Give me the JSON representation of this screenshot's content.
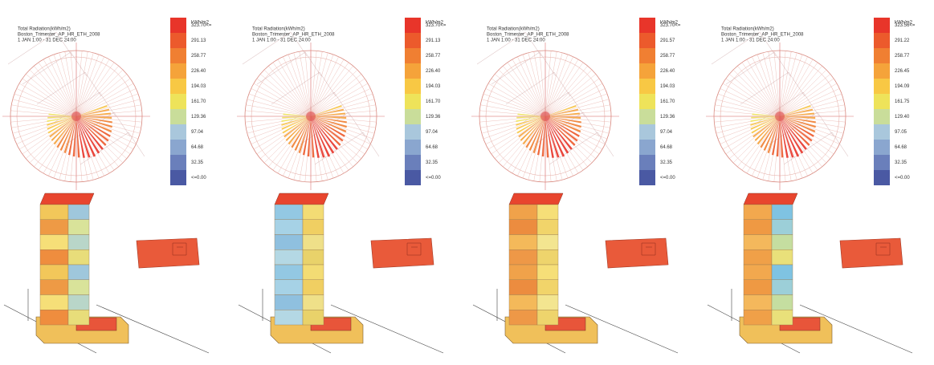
{
  "panels": [
    {
      "title_lines": [
        "Total Radiation(kWh/m2)",
        "Boston_Trimester_AP_HR_ETH_2008",
        "1 JAN 1:00 - 31 DEC 24:00"
      ],
      "legend_unit": "kWh/m2",
      "legend_labels": [
        "323.70<=",
        "291.13",
        "258.77",
        "226.40",
        "194.03",
        "161.70",
        "129.36",
        "97.04",
        "64.68",
        "32.35",
        "<=0.00"
      ]
    },
    {
      "title_lines": [
        "Total Radiation(kWh/m2)",
        "Boston_Trimester_AP_HR_ETH_2008",
        "1 JAN 1:00 - 31 DEC 24:00"
      ],
      "legend_unit": "kWh/m2",
      "legend_labels": [
        "323.70<=",
        "291.13",
        "258.77",
        "226.40",
        "194.03",
        "161.70",
        "129.36",
        "97.04",
        "64.68",
        "32.35",
        "<=0.00"
      ]
    },
    {
      "title_lines": [
        "Total Radiation(kWh/m2)",
        "Boston_Trimester_AP_HR_ETH_2008",
        "1 JAN 1:00 - 31 DEC 24:00"
      ],
      "legend_unit": "kWh/m2",
      "legend_labels": [
        "323.70<=",
        "291.57",
        "258.77",
        "226.40",
        "194.03",
        "161.70",
        "129.36",
        "97.04",
        "64.68",
        "32.35",
        "<=0.00"
      ]
    },
    {
      "title_lines": [
        "Total Radiation(kWh/m2)",
        "Boston_Trimester_AP_HR_ETH_2008",
        "1 JAN 1:00 - 31 DEC 24:00"
      ],
      "legend_unit": "kWh/m2",
      "legend_labels": [
        "323.56<=",
        "291.22",
        "258.77",
        "226.45",
        "194.09",
        "161.75",
        "129.40",
        "97.05",
        "64.68",
        "32.35",
        "<=0.00"
      ]
    }
  ]
}
